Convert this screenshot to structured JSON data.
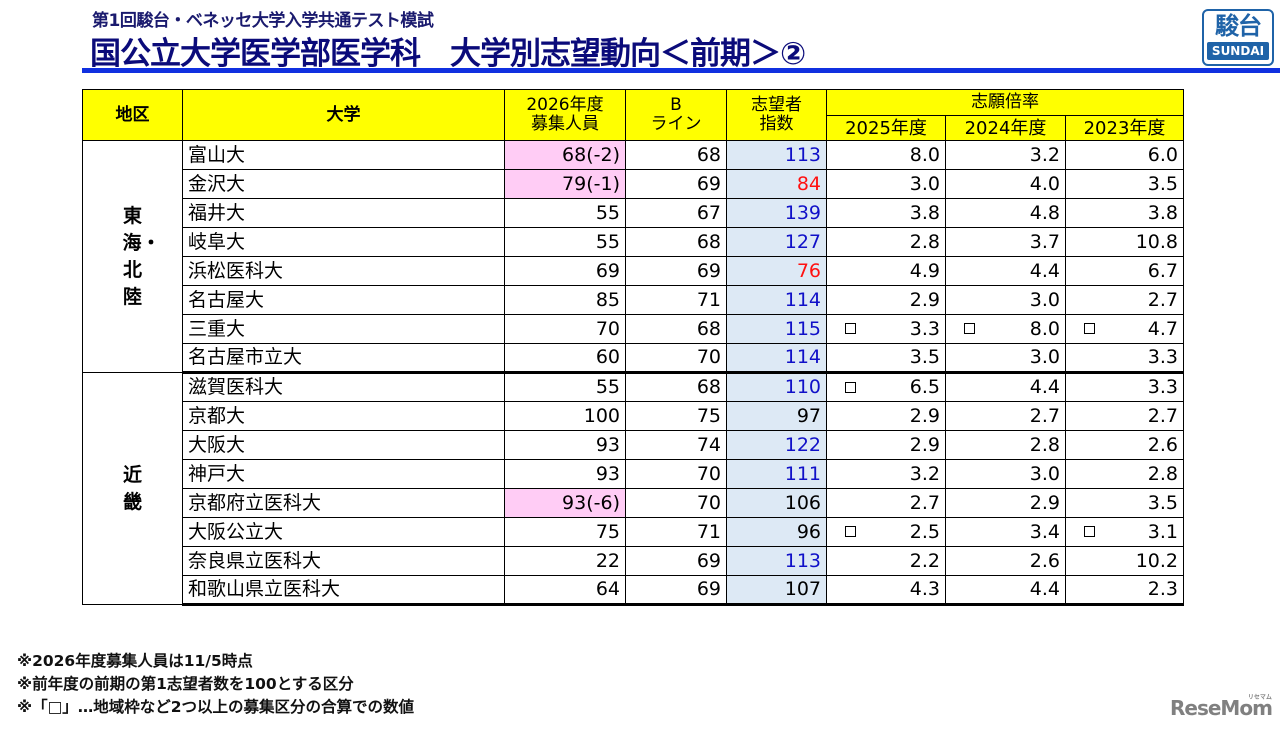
{
  "header": {
    "subtitle": "第1回駿台・ベネッセ大学入学共通テスト模試",
    "title": "国公立大学医学部医学科　大学別志望動向＜前期＞②",
    "logo_kanji": "駿台",
    "logo_roman": "SUNDAI",
    "accent_color": "#1030e0"
  },
  "table": {
    "columns": {
      "region": "地区",
      "university": "大学",
      "capacity_line1": "2026年度",
      "capacity_line2": "募集人員",
      "bline_line1": "B",
      "bline_line2": "ライン",
      "index_line1": "志望者",
      "index_line2": "指数",
      "ratio_group": "志願倍率",
      "ratio_2025": "2025年度",
      "ratio_2024": "2024年度",
      "ratio_2023": "2023年度"
    },
    "regions": [
      {
        "label": "東海・北陸",
        "display": "東海・北陸",
        "rows": 8
      },
      {
        "label": "近畿",
        "display": "近畿",
        "rows": 8
      }
    ],
    "rows": [
      {
        "univ": "富山大",
        "capacity": "68(-2)",
        "capacity_highlight": true,
        "bline": "68",
        "index": "113",
        "index_color": "blue",
        "r2025": "8.0",
        "r2024": "3.2",
        "r2023": "6.0",
        "box2025": false,
        "box2024": false,
        "box2023": false
      },
      {
        "univ": "金沢大",
        "capacity": "79(-1)",
        "capacity_highlight": true,
        "bline": "69",
        "index": "84",
        "index_color": "red",
        "r2025": "3.0",
        "r2024": "4.0",
        "r2023": "3.5",
        "box2025": false,
        "box2024": false,
        "box2023": false
      },
      {
        "univ": "福井大",
        "capacity": "55",
        "capacity_highlight": false,
        "bline": "67",
        "index": "139",
        "index_color": "blue",
        "r2025": "3.8",
        "r2024": "4.8",
        "r2023": "3.8",
        "box2025": false,
        "box2024": false,
        "box2023": false
      },
      {
        "univ": "岐阜大",
        "capacity": "55",
        "capacity_highlight": false,
        "bline": "68",
        "index": "127",
        "index_color": "blue",
        "r2025": "2.8",
        "r2024": "3.7",
        "r2023": "10.8",
        "box2025": false,
        "box2024": false,
        "box2023": false
      },
      {
        "univ": "浜松医科大",
        "capacity": "69",
        "capacity_highlight": false,
        "bline": "69",
        "index": "76",
        "index_color": "red",
        "r2025": "4.9",
        "r2024": "4.4",
        "r2023": "6.7",
        "box2025": false,
        "box2024": false,
        "box2023": false
      },
      {
        "univ": "名古屋大",
        "capacity": "85",
        "capacity_highlight": false,
        "bline": "71",
        "index": "114",
        "index_color": "blue",
        "r2025": "2.9",
        "r2024": "3.0",
        "r2023": "2.7",
        "box2025": false,
        "box2024": false,
        "box2023": false
      },
      {
        "univ": "三重大",
        "capacity": "70",
        "capacity_highlight": false,
        "bline": "68",
        "index": "115",
        "index_color": "blue",
        "r2025": "3.3",
        "r2024": "8.0",
        "r2023": "4.7",
        "box2025": true,
        "box2024": true,
        "box2023": true
      },
      {
        "univ": "名古屋市立大",
        "capacity": "60",
        "capacity_highlight": false,
        "bline": "70",
        "index": "114",
        "index_color": "blue",
        "r2025": "3.5",
        "r2024": "3.0",
        "r2023": "3.3",
        "box2025": false,
        "box2024": false,
        "box2023": false
      },
      {
        "univ": "滋賀医科大",
        "capacity": "55",
        "capacity_highlight": false,
        "bline": "68",
        "index": "110",
        "index_color": "blue",
        "r2025": "6.5",
        "r2024": "4.4",
        "r2023": "3.3",
        "box2025": true,
        "box2024": false,
        "box2023": false
      },
      {
        "univ": "京都大",
        "capacity": "100",
        "capacity_highlight": false,
        "bline": "75",
        "index": "97",
        "index_color": "black",
        "r2025": "2.9",
        "r2024": "2.7",
        "r2023": "2.7",
        "box2025": false,
        "box2024": false,
        "box2023": false
      },
      {
        "univ": "大阪大",
        "capacity": "93",
        "capacity_highlight": false,
        "bline": "74",
        "index": "122",
        "index_color": "blue",
        "r2025": "2.9",
        "r2024": "2.8",
        "r2023": "2.6",
        "box2025": false,
        "box2024": false,
        "box2023": false
      },
      {
        "univ": "神戸大",
        "capacity": "93",
        "capacity_highlight": false,
        "bline": "70",
        "index": "111",
        "index_color": "blue",
        "r2025": "3.2",
        "r2024": "3.0",
        "r2023": "2.8",
        "box2025": false,
        "box2024": false,
        "box2023": false
      },
      {
        "univ": "京都府立医科大",
        "capacity": "93(-6)",
        "capacity_highlight": true,
        "bline": "70",
        "index": "106",
        "index_color": "black",
        "r2025": "2.7",
        "r2024": "2.9",
        "r2023": "3.5",
        "box2025": false,
        "box2024": false,
        "box2023": false
      },
      {
        "univ": "大阪公立大",
        "capacity": "75",
        "capacity_highlight": false,
        "bline": "71",
        "index": "96",
        "index_color": "black",
        "r2025": "2.5",
        "r2024": "3.4",
        "r2023": "3.1",
        "box2025": true,
        "box2024": false,
        "box2023": true
      },
      {
        "univ": "奈良県立医科大",
        "capacity": "22",
        "capacity_highlight": false,
        "bline": "69",
        "index": "113",
        "index_color": "blue",
        "r2025": "2.2",
        "r2024": "2.6",
        "r2023": "10.2",
        "box2025": false,
        "box2024": false,
        "box2023": false
      },
      {
        "univ": "和歌山県立医科大",
        "capacity": "64",
        "capacity_highlight": false,
        "bline": "69",
        "index": "107",
        "index_color": "black",
        "r2025": "4.3",
        "r2024": "4.4",
        "r2023": "2.3",
        "box2025": false,
        "box2024": false,
        "box2023": false
      }
    ],
    "colors": {
      "header_bg": "#ffff00",
      "capacity_highlight_bg": "#ffccf5",
      "index_bg": "#dde9f5",
      "index_up": "#1010c8",
      "index_down": "#ff1010"
    }
  },
  "notes": [
    "※2026年度募集人員は11/5時点",
    "※前年度の前期の第1志望者数を100とする区分",
    "※「□」…地域枠など2つ以上の募集区分の合算での数値"
  ],
  "watermark": {
    "text": "ReseMom",
    "small": "リセマム"
  }
}
